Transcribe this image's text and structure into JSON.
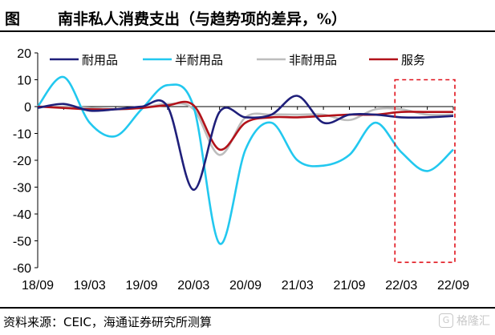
{
  "header": {
    "figure_label": "图",
    "title": "南非私人消费支出（与趋势项的差异，%）"
  },
  "footer": {
    "source": "资料来源：CEIC，海通证券研究所测算",
    "watermark": "格隆汇",
    "watermark_icon": "G"
  },
  "chart_data": {
    "type": "line",
    "x": [
      "2018Q3",
      "2018Q4",
      "2019Q1",
      "2019Q2",
      "2019Q3",
      "2019Q4",
      "2020Q1",
      "2020Q2",
      "2020Q3",
      "2020Q4",
      "2021Q1",
      "2021Q2",
      "2021Q3",
      "2021Q4",
      "2022Q1",
      "2022Q2",
      "2022Q3"
    ],
    "x_tick_labels": [
      "18/09",
      "19/03",
      "19/09",
      "20/03",
      "20/09",
      "21/03",
      "21/09",
      "22/03",
      "22/09"
    ],
    "ylim": [
      -60,
      20
    ],
    "y_ticks": [
      20,
      10,
      0,
      -10,
      -20,
      -30,
      -40,
      -50,
      -60
    ],
    "series": [
      {
        "name": "耐用品",
        "color": "#1f1f7a",
        "values": [
          -0.5,
          1,
          -1.5,
          -1,
          0,
          0,
          -31,
          -2,
          -4,
          -3,
          4,
          -6,
          -3,
          -3,
          -4,
          -4,
          -3.5
        ]
      },
      {
        "name": "半耐用品",
        "color": "#22c8ef",
        "values": [
          0,
          11,
          -6,
          -11,
          -1,
          8,
          0,
          -51,
          -16,
          -6,
          -20,
          -22,
          -18,
          -6,
          -17,
          -24,
          -16
        ]
      },
      {
        "name": "非耐用品",
        "color": "#bdbdbd",
        "values": [
          0,
          0,
          -0.5,
          -1,
          -0.5,
          1,
          -1,
          -18,
          -4,
          -3,
          -3,
          -3,
          -5,
          -1,
          -1,
          -3,
          -3
        ]
      },
      {
        "name": "服务",
        "color": "#b2121a",
        "values": [
          0,
          -0.5,
          -1,
          -1,
          -0.5,
          0.5,
          0.5,
          -16,
          -6,
          -4,
          -4,
          -3.5,
          -3,
          -3,
          -2,
          -2,
          -2
        ]
      }
    ],
    "highlight_box": {
      "x_from": "2022Q1",
      "x_to": "2022Q3",
      "y_from": -58,
      "y_to": 10,
      "color": "#e0101a"
    },
    "legend_position": "top"
  }
}
